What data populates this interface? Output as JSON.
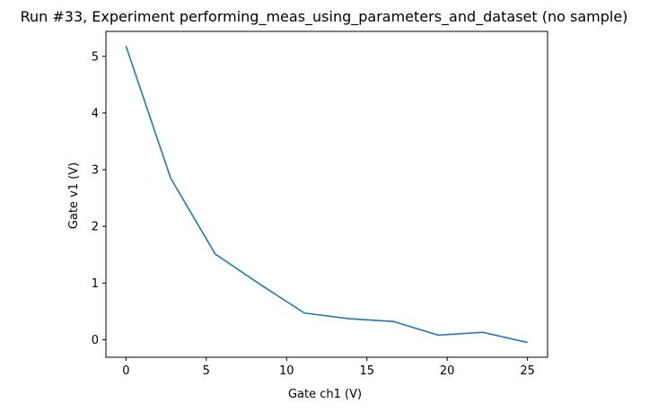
{
  "chart_data": {
    "type": "line",
    "title": "Run #33, Experiment performing_meas_using_parameters_and_dataset (no sample)",
    "xlabel": "Gate ch1 (V)",
    "ylabel": "Gate v1 (V)",
    "xlim": [
      -1.25,
      26.25
    ],
    "ylim": [
      -0.31,
      5.44
    ],
    "xticks": [
      0,
      5,
      10,
      15,
      20,
      25
    ],
    "yticks": [
      0,
      1,
      2,
      3,
      4,
      5
    ],
    "grid": false,
    "series": [
      {
        "color": "#1f77b4",
        "x": [
          0,
          2.78,
          5.56,
          8.33,
          11.11,
          13.89,
          16.67,
          19.44,
          22.22,
          25.0
        ],
        "y": [
          5.18,
          2.85,
          1.51,
          0.98,
          0.47,
          0.37,
          0.32,
          0.08,
          0.13,
          -0.05
        ]
      }
    ]
  }
}
